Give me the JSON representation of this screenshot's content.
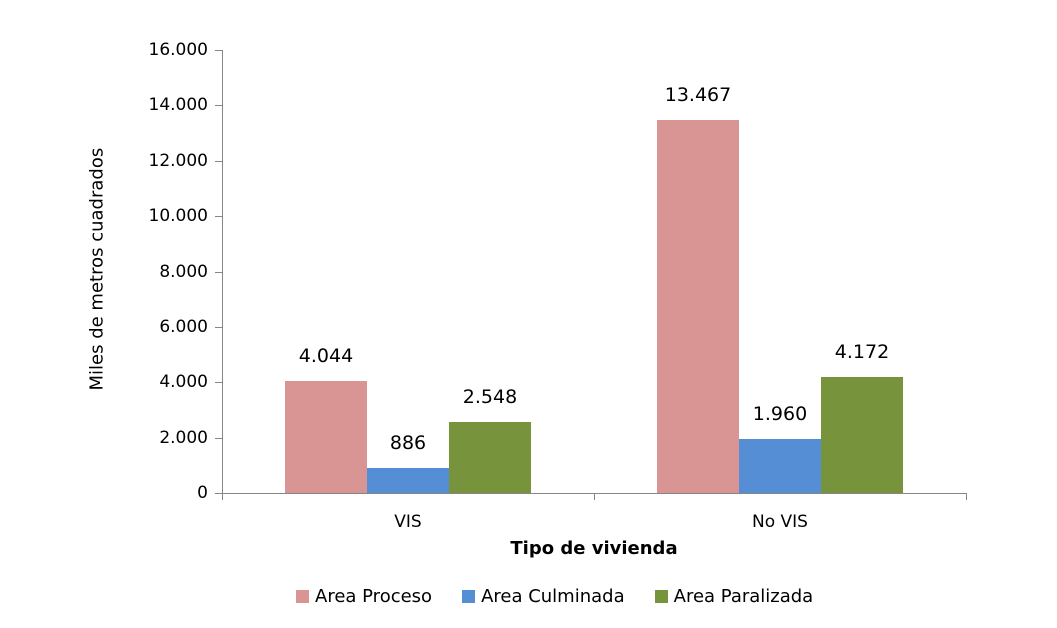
{
  "chart_data": {
    "type": "bar",
    "title": "",
    "xlabel": "Tipo de vivienda",
    "ylabel": "Miles de metros cuadrados",
    "ylim": [
      0,
      16000
    ],
    "yticks": [
      "0",
      "2.000",
      "4.000",
      "6.000",
      "8.000",
      "10.000",
      "12.000",
      "14.000",
      "16.000"
    ],
    "ytick_values": [
      0,
      2000,
      4000,
      6000,
      8000,
      10000,
      12000,
      14000,
      16000
    ],
    "categories": [
      "VIS",
      "No VIS"
    ],
    "series": [
      {
        "name": "Area Proceso",
        "color": "#D99594",
        "values": [
          4044,
          13467
        ],
        "labels": [
          "4.044",
          "13.467"
        ]
      },
      {
        "name": "Area Culminada",
        "color": "#558ED5",
        "values": [
          886,
          1960
        ],
        "labels": [
          "886",
          "1.960"
        ]
      },
      {
        "name": "Area Paralizada",
        "color": "#77933C",
        "values": [
          2548,
          4172
        ],
        "labels": [
          "2.548",
          "4.172"
        ]
      }
    ],
    "grid": false,
    "legend_position": "bottom"
  }
}
